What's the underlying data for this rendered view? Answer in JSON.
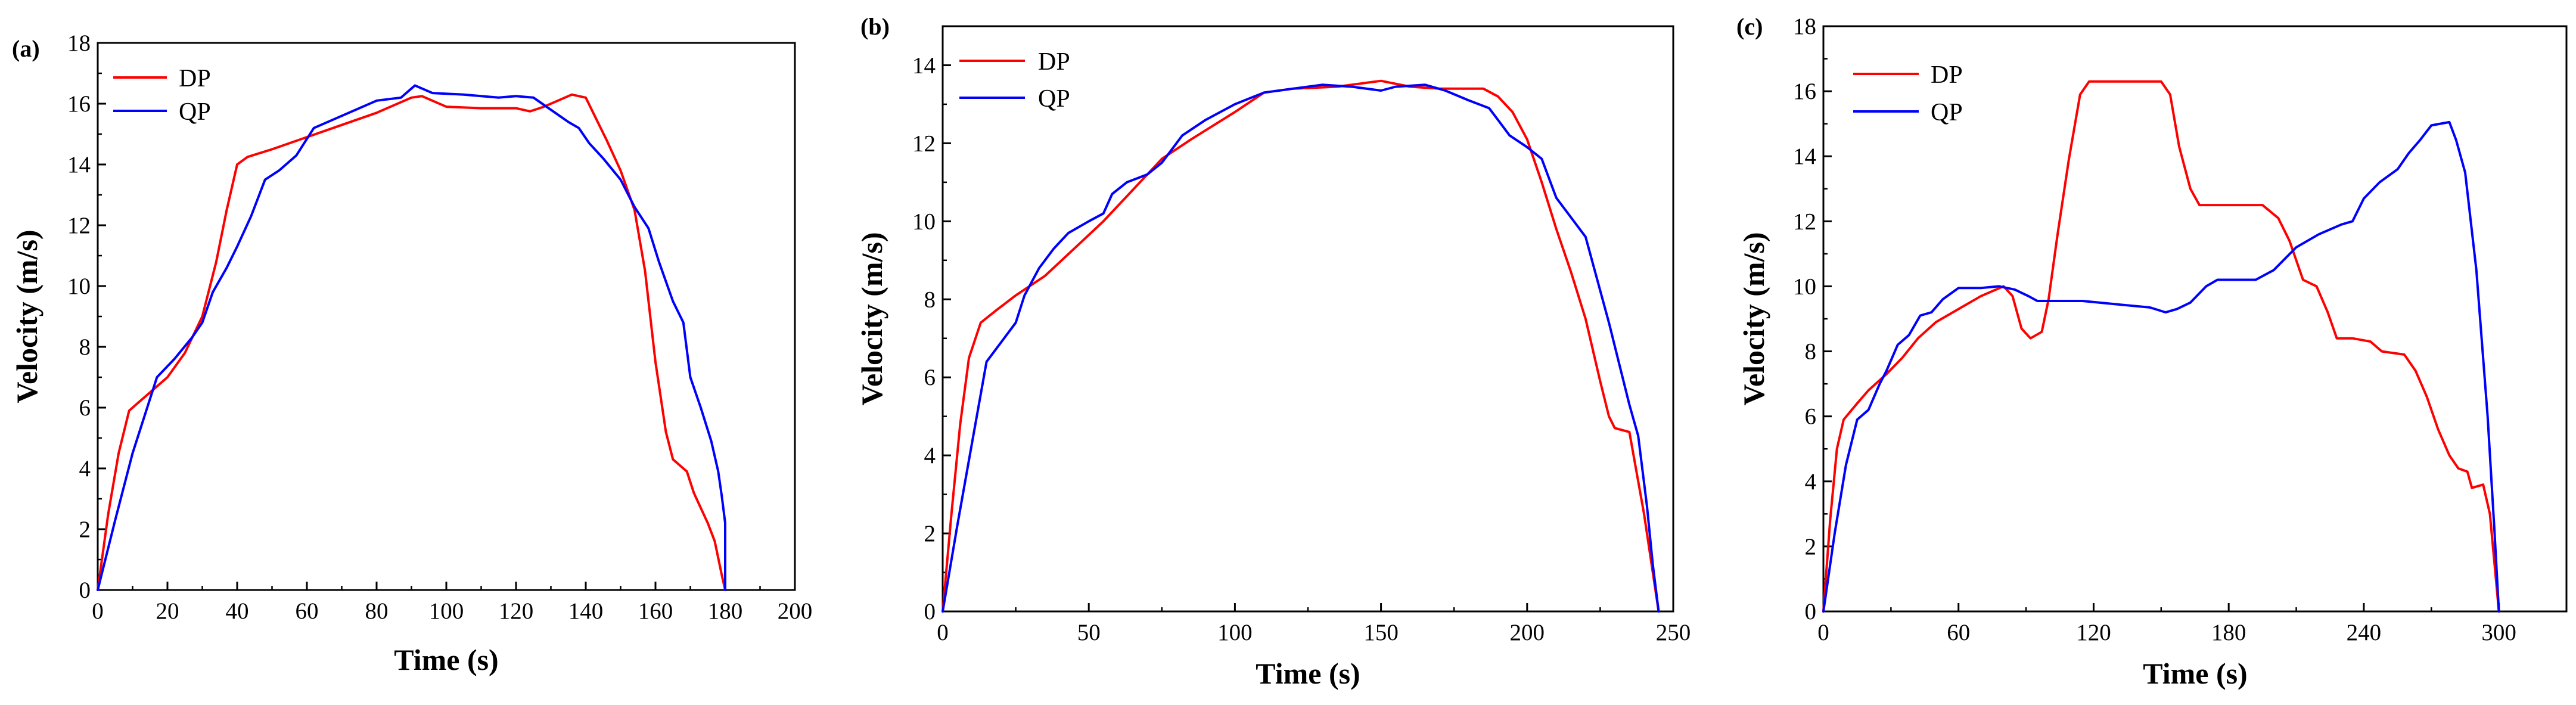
{
  "chart_data": [
    {
      "type": "line",
      "panel_label": "(a)",
      "xlabel": "Time (s)",
      "ylabel": "Velocity (m/s)",
      "xlim": [
        0,
        200
      ],
      "ylim": [
        0,
        18
      ],
      "xticks": [
        0,
        20,
        40,
        60,
        80,
        100,
        120,
        140,
        160,
        180,
        200
      ],
      "yticks": [
        0,
        2,
        4,
        6,
        8,
        10,
        12,
        14,
        16,
        18
      ],
      "legend": "top-left",
      "series": [
        {
          "name": "DP",
          "color": "#ff0000",
          "points": [
            [
              0,
              0
            ],
            [
              3,
              2.5
            ],
            [
              6,
              4.5
            ],
            [
              9,
              5.9
            ],
            [
              12,
              6.2
            ],
            [
              15,
              6.5
            ],
            [
              20,
              7.0
            ],
            [
              25,
              7.8
            ],
            [
              30,
              9.0
            ],
            [
              34,
              10.8
            ],
            [
              37,
              12.5
            ],
            [
              40,
              14.0
            ],
            [
              43,
              14.25
            ],
            [
              50,
              14.5
            ],
            [
              60,
              14.9
            ],
            [
              70,
              15.3
            ],
            [
              80,
              15.7
            ],
            [
              90,
              16.2
            ],
            [
              93,
              16.25
            ],
            [
              96,
              16.1
            ],
            [
              100,
              15.9
            ],
            [
              110,
              15.85
            ],
            [
              120,
              15.85
            ],
            [
              124,
              15.75
            ],
            [
              128,
              15.9
            ],
            [
              132,
              16.1
            ],
            [
              136,
              16.3
            ],
            [
              140,
              16.2
            ],
            [
              143,
              15.5
            ],
            [
              146,
              14.8
            ],
            [
              150,
              13.8
            ],
            [
              154,
              12.5
            ],
            [
              157,
              10.5
            ],
            [
              160,
              7.5
            ],
            [
              163,
              5.2
            ],
            [
              165,
              4.3
            ],
            [
              167,
              4.1
            ],
            [
              169,
              3.9
            ],
            [
              171,
              3.2
            ],
            [
              173,
              2.7
            ],
            [
              175,
              2.2
            ],
            [
              177,
              1.6
            ],
            [
              179,
              0.5
            ],
            [
              180,
              0
            ]
          ]
        },
        {
          "name": "QP",
          "color": "#0000ff",
          "points": [
            [
              0,
              0
            ],
            [
              5,
              2.3
            ],
            [
              10,
              4.5
            ],
            [
              17,
              7.0
            ],
            [
              22,
              7.6
            ],
            [
              27,
              8.3
            ],
            [
              30,
              8.8
            ],
            [
              33,
              9.8
            ],
            [
              37,
              10.6
            ],
            [
              40,
              11.3
            ],
            [
              44,
              12.3
            ],
            [
              48,
              13.5
            ],
            [
              52,
              13.8
            ],
            [
              57,
              14.3
            ],
            [
              62,
              15.2
            ],
            [
              70,
              15.6
            ],
            [
              80,
              16.1
            ],
            [
              87,
              16.2
            ],
            [
              91,
              16.6
            ],
            [
              96,
              16.35
            ],
            [
              105,
              16.3
            ],
            [
              115,
              16.2
            ],
            [
              120,
              16.25
            ],
            [
              125,
              16.2
            ],
            [
              130,
              15.8
            ],
            [
              135,
              15.4
            ],
            [
              138,
              15.2
            ],
            [
              141,
              14.7
            ],
            [
              145,
              14.2
            ],
            [
              150,
              13.5
            ],
            [
              154,
              12.6
            ],
            [
              158,
              11.9
            ],
            [
              161,
              10.8
            ],
            [
              165,
              9.5
            ],
            [
              168,
              8.8
            ],
            [
              170,
              7.0
            ],
            [
              173,
              6.0
            ],
            [
              176,
              4.9
            ],
            [
              178,
              3.9
            ],
            [
              179,
              3.1
            ],
            [
              180,
              2.2
            ],
            [
              180,
              0
            ]
          ]
        }
      ]
    },
    {
      "type": "line",
      "panel_label": "(b)",
      "xlabel": "Time (s)",
      "ylabel": "Velocity (m/s)",
      "xlim": [
        0,
        250
      ],
      "ylim": [
        0,
        15
      ],
      "xticks": [
        0,
        50,
        100,
        150,
        200,
        250
      ],
      "yticks": [
        0,
        2,
        4,
        6,
        8,
        10,
        12,
        14
      ],
      "legend": "top-left",
      "series": [
        {
          "name": "DP",
          "color": "#ff0000",
          "points": [
            [
              0,
              0
            ],
            [
              3,
              2.5
            ],
            [
              6,
              4.8
            ],
            [
              9,
              6.5
            ],
            [
              13,
              7.4
            ],
            [
              18,
              7.7
            ],
            [
              25,
              8.1
            ],
            [
              35,
              8.6
            ],
            [
              45,
              9.3
            ],
            [
              55,
              10.0
            ],
            [
              65,
              10.8
            ],
            [
              75,
              11.6
            ],
            [
              85,
              12.1
            ],
            [
              100,
              12.8
            ],
            [
              110,
              13.3
            ],
            [
              120,
              13.4
            ],
            [
              135,
              13.45
            ],
            [
              145,
              13.55
            ],
            [
              150,
              13.6
            ],
            [
              160,
              13.45
            ],
            [
              170,
              13.4
            ],
            [
              185,
              13.4
            ],
            [
              190,
              13.2
            ],
            [
              195,
              12.8
            ],
            [
              200,
              12.1
            ],
            [
              205,
              11.0
            ],
            [
              210,
              9.8
            ],
            [
              215,
              8.7
            ],
            [
              220,
              7.5
            ],
            [
              225,
              5.9
            ],
            [
              228,
              5.0
            ],
            [
              230,
              4.7
            ],
            [
              235,
              4.6
            ],
            [
              240,
              2.5
            ],
            [
              245,
              0
            ]
          ]
        },
        {
          "name": "QP",
          "color": "#0000ff",
          "points": [
            [
              0,
              0
            ],
            [
              5,
              2.2
            ],
            [
              10,
              4.3
            ],
            [
              15,
              6.4
            ],
            [
              20,
              6.9
            ],
            [
              25,
              7.4
            ],
            [
              28,
              8.1
            ],
            [
              33,
              8.8
            ],
            [
              38,
              9.3
            ],
            [
              43,
              9.7
            ],
            [
              50,
              10.0
            ],
            [
              55,
              10.2
            ],
            [
              58,
              10.7
            ],
            [
              63,
              11.0
            ],
            [
              70,
              11.2
            ],
            [
              75,
              11.5
            ],
            [
              82,
              12.2
            ],
            [
              90,
              12.6
            ],
            [
              100,
              13.0
            ],
            [
              110,
              13.3
            ],
            [
              120,
              13.4
            ],
            [
              130,
              13.5
            ],
            [
              140,
              13.45
            ],
            [
              150,
              13.35
            ],
            [
              155,
              13.45
            ],
            [
              165,
              13.5
            ],
            [
              172,
              13.35
            ],
            [
              180,
              13.1
            ],
            [
              187,
              12.9
            ],
            [
              190,
              12.6
            ],
            [
              194,
              12.2
            ],
            [
              200,
              11.9
            ],
            [
              205,
              11.6
            ],
            [
              210,
              10.6
            ],
            [
              215,
              10.1
            ],
            [
              220,
              9.6
            ],
            [
              224,
              8.5
            ],
            [
              228,
              7.4
            ],
            [
              232,
              6.2
            ],
            [
              235,
              5.3
            ],
            [
              238,
              4.5
            ],
            [
              241,
              2.7
            ],
            [
              243,
              1.2
            ],
            [
              245,
              0
            ]
          ]
        }
      ]
    },
    {
      "type": "line",
      "panel_label": "(c)",
      "xlabel": "Time (s)",
      "ylabel": "Velocity (m/s)",
      "xlim": [
        0,
        330
      ],
      "ylim": [
        0,
        18
      ],
      "xticks": [
        0,
        60,
        120,
        180,
        240,
        300
      ],
      "yticks": [
        0,
        2,
        4,
        6,
        8,
        10,
        12,
        14,
        16,
        18
      ],
      "legend": "top-left",
      "series": [
        {
          "name": "DP",
          "color": "#ff0000",
          "points": [
            [
              0,
              0
            ],
            [
              3,
              2.8
            ],
            [
              6,
              5.0
            ],
            [
              9,
              5.9
            ],
            [
              15,
              6.4
            ],
            [
              20,
              6.8
            ],
            [
              28,
              7.3
            ],
            [
              35,
              7.8
            ],
            [
              42,
              8.4
            ],
            [
              50,
              8.9
            ],
            [
              60,
              9.3
            ],
            [
              70,
              9.7
            ],
            [
              80,
              10.0
            ],
            [
              84,
              9.7
            ],
            [
              88,
              8.7
            ],
            [
              92,
              8.4
            ],
            [
              97,
              8.6
            ],
            [
              100,
              9.6
            ],
            [
              104,
              11.6
            ],
            [
              109,
              13.9
            ],
            [
              114,
              15.9
            ],
            [
              118,
              16.3
            ],
            [
              125,
              16.3
            ],
            [
              140,
              16.3
            ],
            [
              150,
              16.3
            ],
            [
              154,
              15.9
            ],
            [
              158,
              14.3
            ],
            [
              163,
              13.0
            ],
            [
              167,
              12.5
            ],
            [
              180,
              12.5
            ],
            [
              195,
              12.5
            ],
            [
              202,
              12.1
            ],
            [
              207,
              11.4
            ],
            [
              213,
              10.2
            ],
            [
              219,
              10.0
            ],
            [
              224,
              9.2
            ],
            [
              228,
              8.4
            ],
            [
              235,
              8.4
            ],
            [
              243,
              8.3
            ],
            [
              248,
              8.0
            ],
            [
              258,
              7.9
            ],
            [
              263,
              7.4
            ],
            [
              268,
              6.6
            ],
            [
              273,
              5.6
            ],
            [
              278,
              4.8
            ],
            [
              282,
              4.4
            ],
            [
              286,
              4.3
            ],
            [
              288,
              3.8
            ],
            [
              293,
              3.9
            ],
            [
              296,
              3.0
            ],
            [
              298,
              1.5
            ],
            [
              300,
              0
            ]
          ]
        },
        {
          "name": "QP",
          "color": "#0000ff",
          "points": [
            [
              0,
              0
            ],
            [
              5,
              2.4
            ],
            [
              10,
              4.5
            ],
            [
              15,
              5.9
            ],
            [
              20,
              6.2
            ],
            [
              25,
              7.0
            ],
            [
              28,
              7.4
            ],
            [
              33,
              8.2
            ],
            [
              38,
              8.5
            ],
            [
              43,
              9.1
            ],
            [
              48,
              9.2
            ],
            [
              53,
              9.6
            ],
            [
              60,
              9.95
            ],
            [
              70,
              9.95
            ],
            [
              78,
              10.0
            ],
            [
              85,
              9.9
            ],
            [
              91,
              9.7
            ],
            [
              95,
              9.55
            ],
            [
              105,
              9.55
            ],
            [
              115,
              9.55
            ],
            [
              130,
              9.45
            ],
            [
              145,
              9.35
            ],
            [
              152,
              9.2
            ],
            [
              157,
              9.3
            ],
            [
              163,
              9.5
            ],
            [
              170,
              10.0
            ],
            [
              175,
              10.2
            ],
            [
              185,
              10.2
            ],
            [
              192,
              10.2
            ],
            [
              200,
              10.5
            ],
            [
              210,
              11.2
            ],
            [
              220,
              11.6
            ],
            [
              230,
              11.9
            ],
            [
              235,
              12.0
            ],
            [
              240,
              12.7
            ],
            [
              247,
              13.2
            ],
            [
              255,
              13.6
            ],
            [
              260,
              14.1
            ],
            [
              265,
              14.5
            ],
            [
              270,
              14.95
            ],
            [
              278,
              15.05
            ],
            [
              281,
              14.5
            ],
            [
              285,
              13.5
            ],
            [
              290,
              10.5
            ],
            [
              295,
              6.0
            ],
            [
              298,
              2.5
            ],
            [
              300,
              0
            ]
          ]
        }
      ]
    }
  ]
}
